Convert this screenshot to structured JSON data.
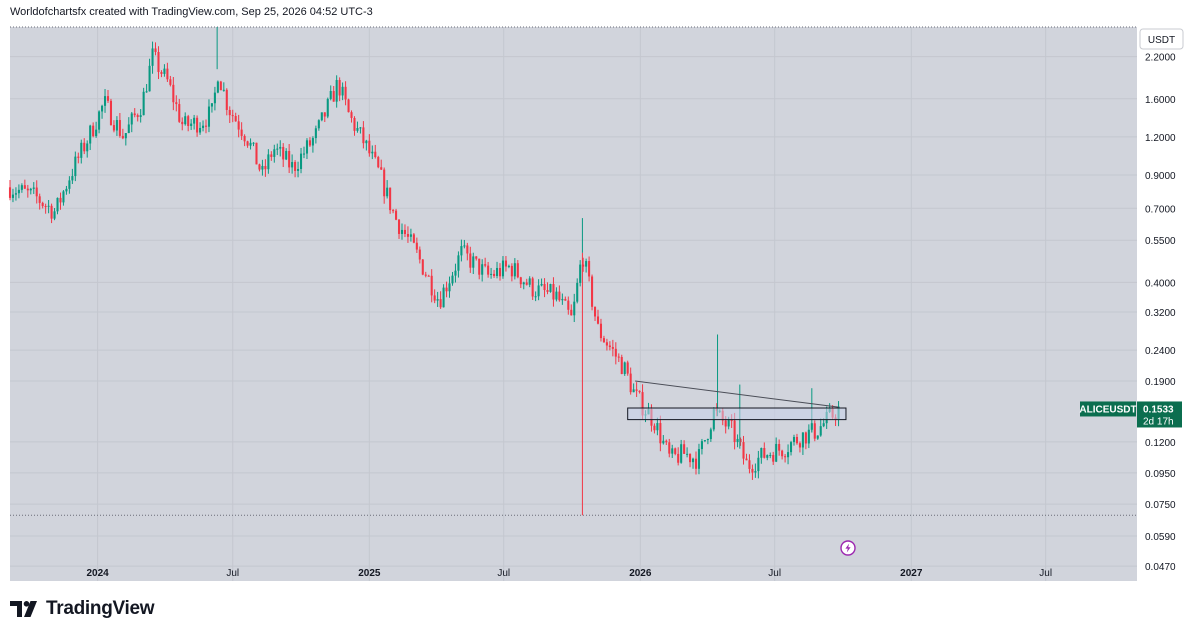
{
  "header": {
    "attribution": "Worldofchartsfx created with TradingView.com, Sep 25, 2026 04:52 UTC-3"
  },
  "footer": {
    "brand": "TradingView"
  },
  "colors": {
    "background": "#d1d4dc",
    "bull": "#089981",
    "bear": "#f23645",
    "label": "#0b6e4f"
  },
  "chart_data": {
    "type": "candlestick",
    "symbol": "ALICEUSDT",
    "currency_label": "USDT",
    "last_price": {
      "value": 0.1533,
      "label": "0.1533",
      "countdown": "2d 17h"
    },
    "y_scale": "log",
    "ylim": [
      0.042,
      2.75
    ],
    "y_ticks": [
      {
        "value": 2.2,
        "label": "2.2000"
      },
      {
        "value": 1.6,
        "label": "1.6000"
      },
      {
        "value": 1.2,
        "label": "1.2000"
      },
      {
        "value": 0.9,
        "label": "0.9000"
      },
      {
        "value": 0.7,
        "label": "0.7000"
      },
      {
        "value": 0.55,
        "label": "0.5500"
      },
      {
        "value": 0.4,
        "label": "0.4000"
      },
      {
        "value": 0.32,
        "label": "0.3200"
      },
      {
        "value": 0.24,
        "label": "0.2400"
      },
      {
        "value": 0.19,
        "label": "0.1900"
      },
      {
        "value": 0.12,
        "label": "0.1200"
      },
      {
        "value": 0.095,
        "label": "0.0950"
      },
      {
        "value": 0.075,
        "label": "0.0750"
      },
      {
        "value": 0.059,
        "label": "0.0590"
      },
      {
        "value": 0.047,
        "label": "0.0470"
      }
    ],
    "xlim": [
      "2023-09-05",
      "2027-11-01"
    ],
    "x_ticks": [
      {
        "date": "2024-01-01",
        "label": "2024",
        "bold": true
      },
      {
        "date": "2024-07-01",
        "label": "Jul",
        "bold": false
      },
      {
        "date": "2025-01-01",
        "label": "2025",
        "bold": true
      },
      {
        "date": "2025-07-01",
        "label": "Jul",
        "bold": false
      },
      {
        "date": "2026-01-01",
        "label": "2026",
        "bold": true
      },
      {
        "date": "2026-07-01",
        "label": "Jul",
        "bold": false
      },
      {
        "date": "2027-01-01",
        "label": "2027",
        "bold": true
      },
      {
        "date": "2027-07-01",
        "label": "Jul",
        "bold": false
      }
    ],
    "price_path": [
      [
        "2023-09-05",
        0.82
      ],
      [
        "2023-10-10",
        0.76
      ],
      [
        "2023-11-05",
        0.68
      ],
      [
        "2023-11-25",
        0.9
      ],
      [
        "2023-12-20",
        1.2
      ],
      [
        "2024-01-10",
        1.55
      ],
      [
        "2024-02-05",
        1.2
      ],
      [
        "2024-03-01",
        1.55
      ],
      [
        "2024-03-15",
        2.2
      ],
      [
        "2024-04-05",
        1.8
      ],
      [
        "2024-04-25",
        1.3
      ],
      [
        "2024-05-20",
        1.35
      ],
      [
        "2024-06-05",
        1.45
      ],
      [
        "2024-06-10",
        2.0
      ],
      [
        "2024-06-25",
        1.5
      ],
      [
        "2024-07-20",
        1.2
      ],
      [
        "2024-08-10",
        0.9
      ],
      [
        "2024-08-25",
        1.1
      ],
      [
        "2024-09-20",
        0.95
      ],
      [
        "2024-10-20",
        1.2
      ],
      [
        "2024-11-20",
        1.8
      ],
      [
        "2024-12-05",
        1.4
      ],
      [
        "2024-12-25",
        1.15
      ],
      [
        "2025-01-15",
        0.9
      ],
      [
        "2025-02-05",
        0.65
      ],
      [
        "2025-03-05",
        0.5
      ],
      [
        "2025-04-05",
        0.35
      ],
      [
        "2025-05-05",
        0.5
      ],
      [
        "2025-06-10",
        0.42
      ],
      [
        "2025-07-10",
        0.45
      ],
      [
        "2025-08-10",
        0.38
      ],
      [
        "2025-09-10",
        0.36
      ],
      [
        "2025-10-01",
        0.3
      ],
      [
        "2025-10-15",
        0.5
      ],
      [
        "2025-11-05",
        0.28
      ],
      [
        "2025-12-10",
        0.21
      ],
      [
        "2025-12-25",
        0.17
      ],
      [
        "2026-01-20",
        0.14
      ],
      [
        "2026-02-10",
        0.105
      ],
      [
        "2026-03-01",
        0.11
      ],
      [
        "2026-03-20",
        0.105
      ],
      [
        "2026-04-10",
        0.15
      ],
      [
        "2026-05-05",
        0.13
      ],
      [
        "2026-05-25",
        0.1
      ],
      [
        "2026-06-20",
        0.11
      ],
      [
        "2026-07-15",
        0.115
      ],
      [
        "2026-08-05",
        0.125
      ],
      [
        "2026-08-25",
        0.13
      ],
      [
        "2026-09-25",
        0.1533
      ]
    ],
    "wick_highs": [
      {
        "date": "2024-06-10",
        "value": 2.75
      },
      {
        "date": "2025-10-15",
        "value": 0.65
      },
      {
        "date": "2026-04-15",
        "value": 0.27
      },
      {
        "date": "2026-05-15",
        "value": 0.185
      },
      {
        "date": "2026-08-20",
        "value": 0.18
      }
    ],
    "wick_lows": [
      {
        "date": "2025-10-15",
        "value": 0.069
      }
    ],
    "dotted_levels": [
      2.75,
      0.069
    ],
    "trendline": {
      "start": [
        "2025-12-25",
        0.19
      ],
      "end": [
        "2026-09-25",
        0.156
      ]
    },
    "zone": {
      "start": "2025-12-15",
      "end": "2026-10-05",
      "low": 0.142,
      "high": 0.155
    }
  }
}
